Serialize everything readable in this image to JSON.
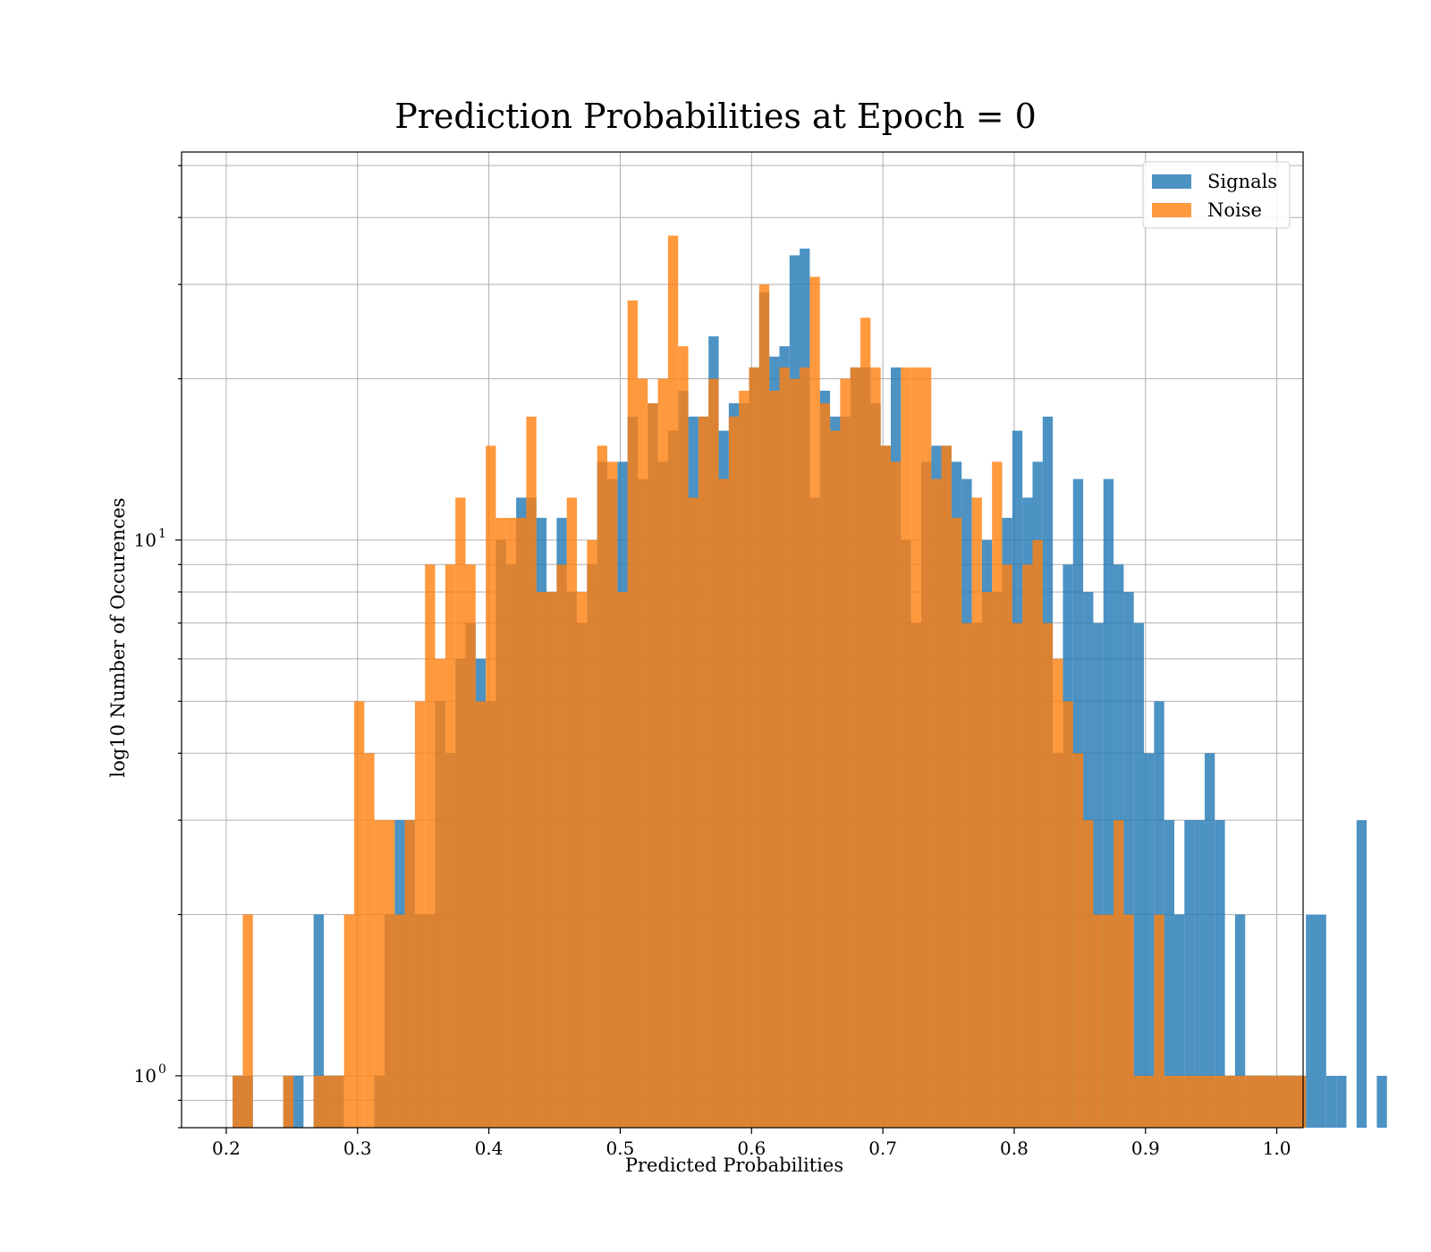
{
  "chart_data": {
    "type": "bar",
    "title": "Prediction Probabilities at Epoch = 0",
    "xlabel": "Predicted Probabilities",
    "ylabel": "log10 Number of Occurences",
    "xlim": [
      0.166,
      1.02
    ],
    "ylim": [
      0.8,
      53
    ],
    "yscale": "log",
    "grid": true,
    "legend_position": "top-right",
    "x_ticks": [
      0.2,
      0.3,
      0.4,
      0.5,
      0.6,
      0.7,
      0.8,
      0.9,
      1.0
    ],
    "x_tick_labels": [
      "0.2",
      "0.3",
      "0.4",
      "0.5",
      "0.6",
      "0.7",
      "0.8",
      "0.9",
      "1.0"
    ],
    "y_major_ticks": [
      {
        "value": 1,
        "base": "10",
        "exp": "0"
      },
      {
        "value": 10,
        "base": "10",
        "exp": "1"
      }
    ],
    "series": [
      {
        "name": "Signals",
        "color": "#1f77b4",
        "opacity": 0.8,
        "bin_start": 0.2049,
        "bin_width": 0.00771,
        "counts": [
          1,
          1,
          0,
          0,
          0,
          1,
          1,
          0,
          2,
          1,
          1,
          0,
          0,
          0,
          1,
          2,
          3,
          3,
          2,
          2,
          5,
          4,
          6,
          7,
          6,
          5,
          10,
          9,
          12,
          12,
          11,
          8,
          11,
          8,
          7,
          9,
          14,
          13,
          14,
          17,
          13,
          18,
          14,
          16,
          19,
          17,
          17,
          24,
          16,
          18,
          18,
          21,
          29,
          22,
          23,
          34,
          35,
          12,
          19,
          17,
          17,
          21,
          21,
          18,
          15,
          21,
          10,
          7,
          14,
          15,
          15,
          14,
          13,
          7,
          10,
          8,
          11,
          16,
          12,
          14,
          17,
          4,
          9,
          13,
          8,
          7,
          13,
          9,
          8,
          7,
          4,
          5,
          3,
          2,
          3,
          3,
          4,
          3,
          1,
          2,
          1,
          1,
          1,
          1,
          1,
          1,
          2,
          2,
          1,
          1,
          0,
          3,
          0,
          1
        ]
      },
      {
        "name": "Noise",
        "color": "#ff7f0e",
        "opacity": 0.8,
        "bin_start": 0.2049,
        "bin_width": 0.00771,
        "counts": [
          1,
          2,
          0,
          0,
          0,
          1,
          0,
          0,
          1,
          1,
          1,
          2,
          5,
          4,
          3,
          3,
          2,
          3,
          5,
          9,
          6,
          9,
          12,
          9,
          5,
          15,
          11,
          11,
          11,
          17,
          8,
          8,
          9,
          12,
          8,
          10,
          15,
          14,
          8,
          28,
          20,
          18,
          20,
          37,
          23,
          12,
          17,
          20,
          13,
          17,
          19,
          21,
          30,
          19,
          21,
          20,
          21,
          31,
          18,
          16,
          20,
          21,
          26,
          21,
          15,
          14,
          21,
          21,
          21,
          13,
          15,
          11,
          7,
          12,
          8,
          14,
          9,
          7,
          9,
          10,
          7,
          6,
          5,
          4,
          3,
          2,
          2,
          3,
          2,
          1,
          1,
          2,
          1,
          1,
          1,
          1,
          1,
          1,
          1,
          1,
          1,
          1,
          1,
          1,
          1,
          1
        ]
      }
    ]
  }
}
